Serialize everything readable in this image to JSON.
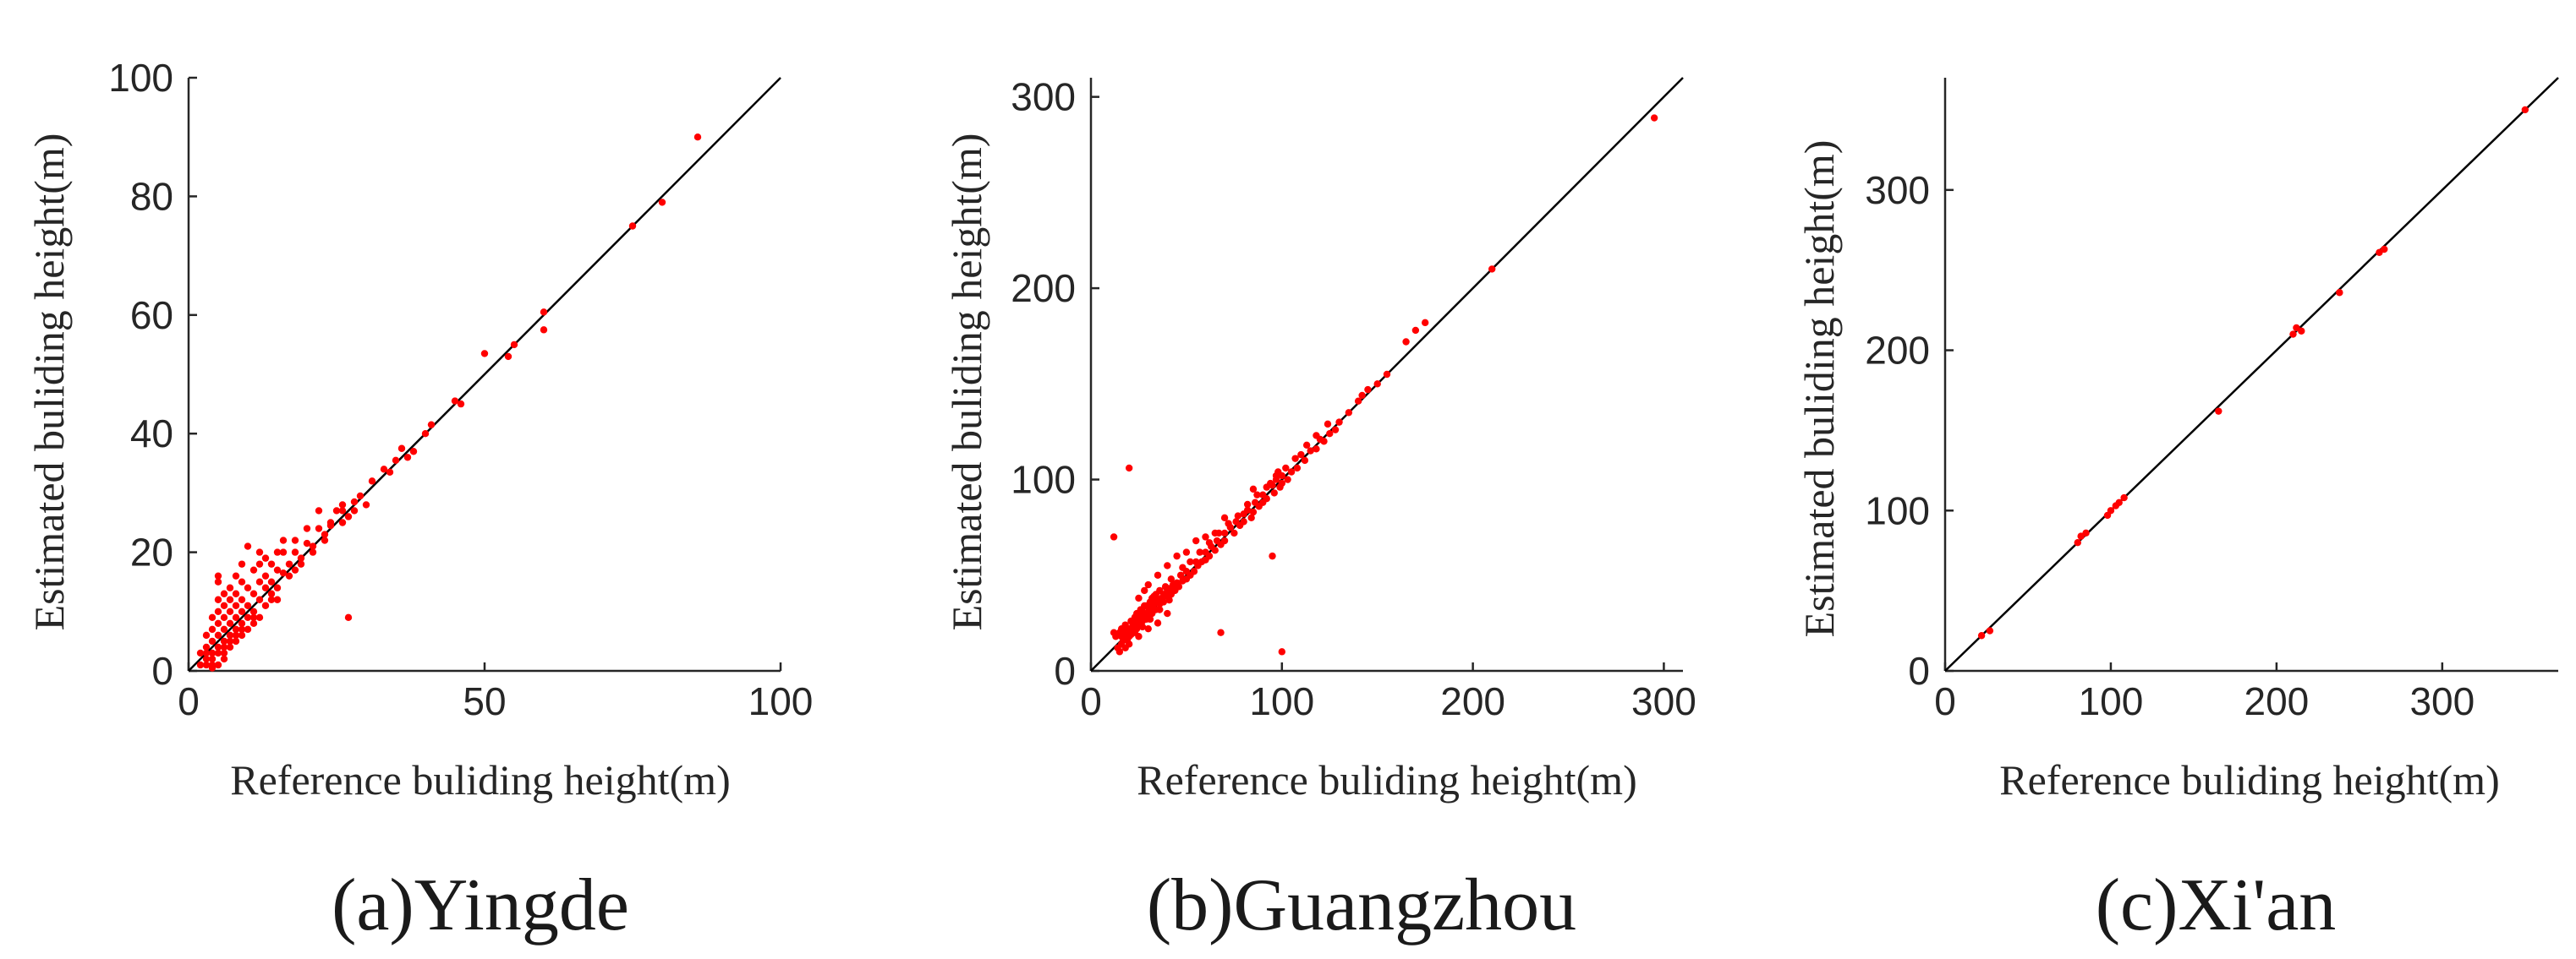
{
  "colors": {
    "points": "#ff0000",
    "reference_line": "#000000",
    "axes": "#262626",
    "background": "#ffffff"
  },
  "chart_data": [
    {
      "type": "scatter",
      "id": "yingde",
      "caption": "(a)Yingde",
      "xlabel": "Reference buliding height(m)",
      "ylabel": "Estimated buliding height(m)",
      "xlim": [
        0,
        100
      ],
      "ylim": [
        0,
        100
      ],
      "xticks": [
        0,
        50,
        100
      ],
      "yticks": [
        0,
        20,
        40,
        60,
        80,
        100
      ],
      "reference_line": "y = x",
      "grid": false,
      "points": [
        [
          86,
          90
        ],
        [
          80,
          79
        ],
        [
          75,
          75
        ],
        [
          60,
          60.5
        ],
        [
          60,
          57.5
        ],
        [
          55,
          55
        ],
        [
          54,
          53
        ],
        [
          50,
          53.5
        ],
        [
          46,
          45
        ],
        [
          45,
          45.5
        ],
        [
          41,
          41.5
        ],
        [
          38,
          37
        ],
        [
          37,
          36
        ],
        [
          36,
          37.5
        ],
        [
          34,
          33.5
        ],
        [
          33,
          34
        ],
        [
          31,
          32
        ],
        [
          30,
          28
        ],
        [
          29,
          29.5
        ],
        [
          28,
          27
        ],
        [
          27,
          26
        ],
        [
          26,
          27
        ],
        [
          26,
          25
        ],
        [
          25,
          27
        ],
        [
          24,
          24.5
        ],
        [
          23,
          22
        ],
        [
          22,
          24
        ],
        [
          21,
          20
        ],
        [
          20,
          21.5
        ],
        [
          19,
          19
        ],
        [
          18,
          20
        ],
        [
          18,
          17
        ],
        [
          17,
          18
        ],
        [
          16,
          16.5
        ],
        [
          16,
          20
        ],
        [
          15,
          14
        ],
        [
          15,
          17
        ],
        [
          14,
          15
        ],
        [
          14,
          18
        ],
        [
          13,
          14
        ],
        [
          13,
          16
        ],
        [
          12,
          20
        ],
        [
          12,
          12
        ],
        [
          12,
          15
        ],
        [
          11,
          13
        ],
        [
          11,
          10
        ],
        [
          11,
          17
        ],
        [
          10,
          11
        ],
        [
          10,
          14
        ],
        [
          10,
          9
        ],
        [
          10,
          21
        ],
        [
          9,
          10
        ],
        [
          9,
          12
        ],
        [
          9,
          15
        ],
        [
          9,
          8
        ],
        [
          9,
          18
        ],
        [
          8,
          9
        ],
        [
          8,
          11
        ],
        [
          8,
          7
        ],
        [
          8,
          13
        ],
        [
          8,
          16
        ],
        [
          7,
          8
        ],
        [
          7,
          10
        ],
        [
          7,
          6
        ],
        [
          7,
          12
        ],
        [
          7,
          14
        ],
        [
          6,
          7
        ],
        [
          6,
          9
        ],
        [
          6,
          5
        ],
        [
          6,
          11
        ],
        [
          6,
          13
        ],
        [
          5,
          6
        ],
        [
          5,
          4
        ],
        [
          5,
          8
        ],
        [
          5,
          10
        ],
        [
          5,
          12
        ],
        [
          4,
          5
        ],
        [
          4,
          3
        ],
        [
          4,
          7
        ],
        [
          4,
          9
        ],
        [
          4,
          2
        ],
        [
          3,
          4
        ],
        [
          3,
          2
        ],
        [
          3,
          6
        ],
        [
          5,
          16
        ],
        [
          4,
          1
        ],
        [
          6,
          3
        ],
        [
          7,
          4
        ],
        [
          8,
          5
        ],
        [
          9,
          6
        ],
        [
          10,
          7
        ],
        [
          5,
          15
        ],
        [
          12,
          18
        ],
        [
          13,
          19
        ],
        [
          15,
          20
        ],
        [
          16,
          22
        ],
        [
          18,
          22
        ],
        [
          20,
          24
        ],
        [
          22,
          27
        ],
        [
          26,
          28
        ],
        [
          27,
          9
        ],
        [
          24,
          25
        ],
        [
          28,
          28.5
        ],
        [
          35,
          35.5
        ],
        [
          40,
          40
        ],
        [
          11,
          8
        ],
        [
          13,
          11
        ],
        [
          14,
          12
        ],
        [
          15,
          12
        ],
        [
          12,
          9
        ],
        [
          3,
          1
        ],
        [
          4,
          0.5
        ],
        [
          5,
          1
        ],
        [
          6,
          2
        ],
        [
          2,
          1
        ],
        [
          2,
          3
        ],
        [
          3,
          3
        ],
        [
          5,
          3
        ],
        [
          6,
          4
        ],
        [
          7,
          5
        ],
        [
          8,
          6
        ],
        [
          9,
          7
        ],
        [
          11,
          9
        ],
        [
          14,
          13
        ],
        [
          17,
          16
        ],
        [
          19,
          18
        ],
        [
          21,
          21
        ],
        [
          23,
          23
        ]
      ]
    },
    {
      "type": "scatter",
      "id": "guangzhou",
      "caption": "(b)Guangzhou",
      "xlabel": "Reference buliding height(m)",
      "ylabel": "Estimated buliding height(m)",
      "xlim": [
        0,
        310
      ],
      "ylim": [
        0,
        310
      ],
      "xticks": [
        0,
        100,
        200,
        300
      ],
      "yticks": [
        0,
        100,
        200,
        300
      ],
      "reference_line": "y = x",
      "grid": false,
      "points": [
        [
          295,
          289
        ],
        [
          210,
          210
        ],
        [
          175,
          182
        ],
        [
          170,
          178
        ],
        [
          165,
          172
        ],
        [
          155,
          155
        ],
        [
          150,
          150
        ],
        [
          145,
          147
        ],
        [
          142,
          144
        ],
        [
          140,
          141
        ],
        [
          135,
          135
        ],
        [
          130,
          130
        ],
        [
          128,
          126
        ],
        [
          125,
          124
        ],
        [
          122,
          120
        ],
        [
          120,
          121
        ],
        [
          118,
          116
        ],
        [
          115,
          115
        ],
        [
          112,
          110
        ],
        [
          110,
          113
        ],
        [
          108,
          106
        ],
        [
          105,
          104
        ],
        [
          103,
          100
        ],
        [
          100,
          102
        ],
        [
          100,
          98
        ],
        [
          99,
          96
        ],
        [
          98,
          104
        ],
        [
          97,
          100
        ],
        [
          96,
          93
        ],
        [
          95,
          97
        ],
        [
          94,
          98
        ],
        [
          92,
          90
        ],
        [
          90,
          92
        ],
        [
          90,
          88
        ],
        [
          88,
          86
        ],
        [
          86,
          88
        ],
        [
          85,
          83
        ],
        [
          84,
          80
        ],
        [
          82,
          84
        ],
        [
          80,
          78
        ],
        [
          80,
          82
        ],
        [
          78,
          76
        ],
        [
          76,
          78
        ],
        [
          75,
          72
        ],
        [
          73,
          75
        ],
        [
          70,
          68
        ],
        [
          70,
          72
        ],
        [
          68,
          66
        ],
        [
          66,
          68
        ],
        [
          65,
          63
        ],
        [
          63,
          65
        ],
        [
          62,
          60
        ],
        [
          60,
          58
        ],
        [
          60,
          62
        ],
        [
          58,
          57
        ],
        [
          56,
          55
        ],
        [
          55,
          57
        ],
        [
          54,
          52
        ],
        [
          52,
          50
        ],
        [
          50,
          52
        ],
        [
          50,
          48
        ],
        [
          48,
          47
        ],
        [
          47,
          50
        ],
        [
          46,
          44
        ],
        [
          45,
          46
        ],
        [
          44,
          42
        ],
        [
          43,
          45
        ],
        [
          42,
          40
        ],
        [
          41,
          43
        ],
        [
          40,
          39
        ],
        [
          40,
          42
        ],
        [
          38,
          36
        ],
        [
          38,
          40
        ],
        [
          37,
          38
        ],
        [
          36,
          35
        ],
        [
          35,
          37
        ],
        [
          34,
          32
        ],
        [
          33,
          35
        ],
        [
          32,
          30
        ],
        [
          31,
          33
        ],
        [
          30,
          29
        ],
        [
          30,
          31
        ],
        [
          29,
          27
        ],
        [
          28,
          30
        ],
        [
          27,
          26
        ],
        [
          26,
          28
        ],
        [
          25,
          24
        ],
        [
          25,
          27
        ],
        [
          24,
          22
        ],
        [
          23,
          25
        ],
        [
          22,
          21
        ],
        [
          22,
          24
        ],
        [
          21,
          19
        ],
        [
          20,
          22
        ],
        [
          20,
          18
        ],
        [
          19,
          21
        ],
        [
          18,
          17
        ],
        [
          18,
          20
        ],
        [
          17,
          16
        ],
        [
          16,
          18
        ],
        [
          15,
          20
        ],
        [
          14,
          19
        ],
        [
          13,
          18
        ],
        [
          12,
          20
        ],
        [
          12,
          70
        ],
        [
          20,
          106
        ],
        [
          28,
          42
        ],
        [
          30,
          45
        ],
        [
          35,
          50
        ],
        [
          25,
          38
        ],
        [
          40,
          55
        ],
        [
          45,
          60
        ],
        [
          50,
          62
        ],
        [
          55,
          68
        ],
        [
          60,
          70
        ],
        [
          65,
          72
        ],
        [
          70,
          80
        ],
        [
          85,
          95
        ],
        [
          95,
          60
        ],
        [
          100,
          10
        ],
        [
          68,
          20
        ],
        [
          40,
          30
        ],
        [
          35,
          25
        ],
        [
          30,
          22
        ],
        [
          25,
          18
        ],
        [
          20,
          14
        ],
        [
          18,
          12
        ],
        [
          15,
          10
        ],
        [
          24,
          30
        ],
        [
          26,
          32
        ],
        [
          28,
          34
        ],
        [
          32,
          38
        ],
        [
          34,
          40
        ],
        [
          36,
          42
        ],
        [
          39,
          44
        ],
        [
          42,
          48
        ],
        [
          48,
          54
        ],
        [
          52,
          57
        ],
        [
          57,
          62
        ],
        [
          62,
          67
        ],
        [
          67,
          72
        ],
        [
          72,
          77
        ],
        [
          77,
          81
        ],
        [
          82,
          87
        ],
        [
          87,
          92
        ],
        [
          92,
          96
        ],
        [
          97,
          102
        ],
        [
          102,
          106
        ],
        [
          107,
          111
        ],
        [
          113,
          118
        ],
        [
          118,
          123
        ],
        [
          124,
          129
        ],
        [
          16,
          22
        ],
        [
          18,
          24
        ],
        [
          21,
          26
        ],
        [
          23,
          28
        ],
        [
          27,
          31
        ],
        [
          29,
          34
        ],
        [
          31,
          36
        ],
        [
          33,
          39
        ],
        [
          14,
          12
        ],
        [
          16,
          14
        ],
        [
          19,
          16
        ],
        [
          23,
          20
        ],
        [
          27,
          23
        ],
        [
          31,
          27
        ],
        [
          36,
          32
        ],
        [
          41,
          37
        ]
      ]
    },
    {
      "type": "scatter",
      "id": "xian",
      "caption": "(c)Xi'an",
      "xlabel": "Reference buliding height(m)",
      "ylabel": "Estimated buliding height(m)",
      "xlim": [
        0,
        370
      ],
      "ylim": [
        0,
        370
      ],
      "xticks": [
        0,
        100,
        200,
        300
      ],
      "yticks": [
        0,
        100,
        200,
        300
      ],
      "reference_line": "y = x",
      "grid": false,
      "points": [
        [
          350,
          350
        ],
        [
          265,
          263
        ],
        [
          262,
          261
        ],
        [
          238,
          236
        ],
        [
          215,
          212
        ],
        [
          212,
          214
        ],
        [
          210,
          210
        ],
        [
          165,
          162
        ],
        [
          108,
          108
        ],
        [
          105,
          105
        ],
        [
          103,
          103
        ],
        [
          100,
          100
        ],
        [
          98,
          97
        ],
        [
          85,
          86
        ],
        [
          82,
          84
        ],
        [
          80,
          80
        ],
        [
          27,
          25
        ],
        [
          22,
          22
        ]
      ]
    }
  ]
}
